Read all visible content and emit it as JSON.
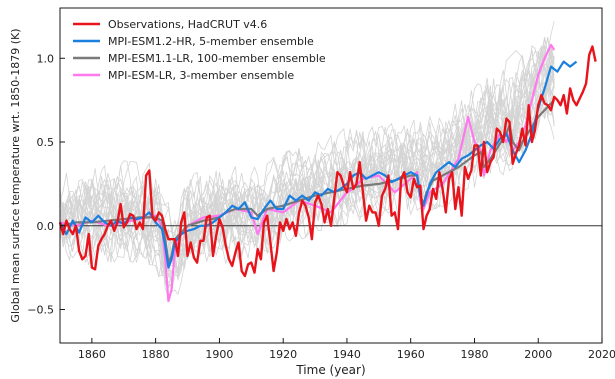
{
  "chart_data": {
    "type": "line",
    "xlabel": "Time (year)",
    "ylabel": "Global mean surface temperature wrt. 1850-1879 (K)",
    "xlim": [
      1850,
      2020
    ],
    "ylim": [
      -0.7,
      1.3
    ],
    "xticks": [
      1860,
      1880,
      1900,
      1920,
      1940,
      1960,
      1980,
      2000,
      2020
    ],
    "yticks": [
      -0.5,
      0.0,
      0.5,
      1.0
    ],
    "ytick_labels": [
      "−0.5",
      "0.0",
      "0.5",
      "1.0"
    ],
    "zero_line": true,
    "legend_position": "top-left",
    "background_ensemble": {
      "color": "#d4d4d4",
      "band_x": [
        1850,
        1860,
        1870,
        1880,
        1883,
        1885,
        1890,
        1900,
        1910,
        1920,
        1930,
        1940,
        1950,
        1960,
        1970,
        1980,
        1990,
        2000,
        2005
      ],
      "band_low": [
        -0.25,
        -0.25,
        -0.22,
        -0.25,
        -0.45,
        -0.5,
        -0.3,
        -0.25,
        -0.2,
        -0.15,
        -0.05,
        0.0,
        0.05,
        0.05,
        0.1,
        0.2,
        0.3,
        0.45,
        0.5
      ],
      "band_high": [
        0.35,
        0.35,
        0.4,
        0.38,
        0.2,
        0.1,
        0.3,
        0.4,
        0.35,
        0.45,
        0.5,
        0.6,
        0.6,
        0.65,
        0.7,
        0.85,
        1.0,
        1.2,
        1.25
      ]
    },
    "series": [
      {
        "name": "Observations, HadCRUT v4.6",
        "color": "#e8141b",
        "x": [
          1850,
          1851,
          1852,
          1853,
          1854,
          1855,
          1856,
          1857,
          1858,
          1859,
          1860,
          1861,
          1862,
          1863,
          1864,
          1865,
          1866,
          1867,
          1868,
          1869,
          1870,
          1871,
          1872,
          1873,
          1874,
          1875,
          1876,
          1877,
          1878,
          1879,
          1880,
          1881,
          1882,
          1883,
          1884,
          1885,
          1886,
          1887,
          1888,
          1889,
          1890,
          1891,
          1892,
          1893,
          1894,
          1895,
          1896,
          1897,
          1898,
          1899,
          1900,
          1901,
          1902,
          1903,
          1904,
          1905,
          1906,
          1907,
          1908,
          1909,
          1910,
          1911,
          1912,
          1913,
          1914,
          1915,
          1916,
          1917,
          1918,
          1919,
          1920,
          1921,
          1922,
          1923,
          1924,
          1925,
          1926,
          1927,
          1928,
          1929,
          1930,
          1931,
          1932,
          1933,
          1934,
          1935,
          1936,
          1937,
          1938,
          1939,
          1940,
          1941,
          1942,
          1943,
          1944,
          1945,
          1946,
          1947,
          1948,
          1949,
          1950,
          1951,
          1952,
          1953,
          1954,
          1955,
          1956,
          1957,
          1958,
          1959,
          1960,
          1961,
          1962,
          1963,
          1964,
          1965,
          1966,
          1967,
          1968,
          1969,
          1970,
          1971,
          1972,
          1973,
          1974,
          1975,
          1976,
          1977,
          1978,
          1979,
          1980,
          1981,
          1982,
          1983,
          1984,
          1985,
          1986,
          1987,
          1988,
          1989,
          1990,
          1991,
          1992,
          1993,
          1994,
          1995,
          1996,
          1997,
          1998,
          1999,
          2000,
          2001,
          2002,
          2003,
          2004,
          2005,
          2006,
          2007,
          2008,
          2009,
          2010,
          2011,
          2012,
          2013,
          2014,
          2015,
          2016,
          2017,
          2018
        ],
        "y": [
          0.02,
          -0.05,
          0.03,
          -0.02,
          -0.05,
          0.0,
          -0.15,
          -0.2,
          -0.18,
          -0.05,
          -0.25,
          -0.26,
          -0.12,
          -0.08,
          -0.05,
          0.0,
          0.03,
          -0.03,
          0.02,
          0.13,
          -0.01,
          0.02,
          0.07,
          0.06,
          -0.02,
          0.02,
          -0.02,
          0.3,
          0.33,
          0.05,
          0.03,
          0.08,
          0.06,
          -0.02,
          -0.08,
          -0.08,
          -0.08,
          -0.18,
          0.02,
          0.08,
          -0.18,
          -0.1,
          -0.19,
          -0.22,
          -0.09,
          -0.09,
          0.05,
          0.06,
          -0.18,
          -0.06,
          0.04,
          -0.01,
          -0.12,
          -0.2,
          -0.24,
          -0.16,
          -0.1,
          -0.27,
          -0.3,
          -0.23,
          -0.22,
          -0.28,
          -0.14,
          -0.2,
          0.02,
          0.06,
          -0.1,
          -0.27,
          -0.16,
          0.02,
          -0.03,
          0.04,
          -0.02,
          0.02,
          -0.06,
          0.08,
          0.15,
          0.12,
          0.05,
          -0.08,
          0.14,
          0.18,
          0.13,
          0.02,
          0.1,
          0.0,
          0.16,
          0.32,
          0.3,
          0.24,
          0.2,
          0.32,
          0.22,
          0.25,
          0.38,
          0.2,
          0.03,
          0.12,
          0.08,
          0.08,
          0.0,
          0.18,
          0.22,
          0.3,
          0.06,
          0.08,
          -0.02,
          0.28,
          0.32,
          0.2,
          0.17,
          0.28,
          0.23,
          0.24,
          -0.02,
          0.06,
          0.1,
          0.22,
          0.16,
          0.32,
          0.22,
          0.08,
          0.28,
          0.32,
          0.1,
          0.23,
          0.06,
          0.35,
          0.28,
          0.33,
          0.48,
          0.48,
          0.3,
          0.5,
          0.32,
          0.38,
          0.41,
          0.58,
          0.56,
          0.5,
          0.64,
          0.62,
          0.37,
          0.43,
          0.48,
          0.58,
          0.48,
          0.72,
          0.5,
          0.57,
          0.72,
          0.78,
          0.73,
          0.72,
          0.69,
          0.77,
          0.75,
          0.72,
          0.78,
          0.67,
          0.82,
          0.75,
          0.72,
          0.76,
          0.8,
          0.85,
          1.02,
          1.07,
          0.98
        ]
      },
      {
        "name": "MPI-ESM1.2-HR, 5-member ensemble",
        "color": "#1a7fde",
        "x": [
          1850,
          1852,
          1854,
          1856,
          1858,
          1860,
          1862,
          1864,
          1866,
          1868,
          1870,
          1872,
          1874,
          1876,
          1878,
          1880,
          1882,
          1883,
          1884,
          1885,
          1886,
          1888,
          1890,
          1892,
          1894,
          1896,
          1898,
          1900,
          1902,
          1904,
          1906,
          1908,
          1910,
          1912,
          1914,
          1916,
          1918,
          1920,
          1922,
          1924,
          1926,
          1928,
          1930,
          1932,
          1934,
          1936,
          1938,
          1940,
          1942,
          1944,
          1946,
          1948,
          1950,
          1952,
          1954,
          1956,
          1958,
          1960,
          1962,
          1963,
          1964,
          1966,
          1968,
          1970,
          1972,
          1974,
          1976,
          1978,
          1980,
          1982,
          1984,
          1986,
          1988,
          1990,
          1992,
          1994,
          1996,
          1998,
          2000,
          2002,
          2004,
          2006,
          2008,
          2010,
          2012
        ],
        "y": [
          0.02,
          -0.05,
          0.03,
          -0.04,
          0.05,
          0.02,
          0.06,
          0.02,
          0.0,
          0.03,
          0.01,
          0.05,
          0.04,
          0.05,
          0.08,
          0.02,
          -0.02,
          -0.12,
          -0.25,
          -0.2,
          -0.1,
          -0.05,
          -0.03,
          -0.02,
          0.0,
          0.0,
          0.02,
          0.05,
          0.08,
          0.12,
          0.1,
          0.14,
          0.05,
          0.04,
          0.1,
          0.15,
          0.1,
          0.1,
          0.18,
          0.15,
          0.18,
          0.15,
          0.2,
          0.18,
          0.22,
          0.2,
          0.22,
          0.25,
          0.3,
          0.32,
          0.28,
          0.3,
          0.32,
          0.3,
          0.26,
          0.28,
          0.3,
          0.32,
          0.3,
          0.18,
          0.12,
          0.25,
          0.32,
          0.35,
          0.38,
          0.35,
          0.4,
          0.42,
          0.45,
          0.48,
          0.5,
          0.46,
          0.52,
          0.55,
          0.45,
          0.38,
          0.45,
          0.55,
          0.7,
          0.82,
          0.95,
          0.92,
          0.98,
          0.95,
          0.98
        ]
      },
      {
        "name": "MPI-ESM1.1-LR, 100-member ensemble",
        "color": "#7a7a7a",
        "x": [
          1850,
          1855,
          1860,
          1865,
          1870,
          1875,
          1880,
          1882,
          1883,
          1884,
          1885,
          1886,
          1888,
          1890,
          1895,
          1900,
          1902,
          1905,
          1910,
          1912,
          1915,
          1920,
          1925,
          1930,
          1935,
          1940,
          1945,
          1950,
          1955,
          1960,
          1962,
          1963,
          1964,
          1965,
          1967,
          1970,
          1975,
          1980,
          1982,
          1983,
          1985,
          1990,
          1991,
          1992,
          1994,
          1995,
          2000,
          2005
        ],
        "y": [
          0.0,
          0.02,
          0.02,
          0.03,
          0.04,
          0.05,
          0.05,
          0.03,
          -0.08,
          -0.22,
          -0.18,
          -0.08,
          -0.04,
          0.0,
          0.03,
          0.05,
          0.08,
          0.1,
          0.1,
          0.06,
          0.1,
          0.12,
          0.15,
          0.18,
          0.2,
          0.22,
          0.24,
          0.25,
          0.27,
          0.3,
          0.3,
          0.18,
          0.13,
          0.2,
          0.27,
          0.3,
          0.35,
          0.42,
          0.44,
          0.35,
          0.4,
          0.55,
          0.6,
          0.5,
          0.45,
          0.5,
          0.65,
          0.75
        ]
      },
      {
        "name": "MPI-ESM-LR, 3-member ensemble",
        "color": "#ff78ee",
        "x": [
          1850,
          1855,
          1860,
          1865,
          1870,
          1875,
          1880,
          1882,
          1883,
          1884,
          1885,
          1886,
          1888,
          1890,
          1895,
          1900,
          1905,
          1910,
          1912,
          1915,
          1920,
          1925,
          1930,
          1935,
          1940,
          1942,
          1945,
          1950,
          1955,
          1960,
          1962,
          1963,
          1964,
          1966,
          1970,
          1975,
          1978,
          1980,
          1982,
          1983,
          1985,
          1988,
          1990,
          1991,
          1992,
          1994,
          1996,
          1998,
          2000,
          2002,
          2004,
          2005
        ],
        "y": [
          0.02,
          0.0,
          0.03,
          0.0,
          0.02,
          0.04,
          0.06,
          0.0,
          -0.2,
          -0.45,
          -0.38,
          -0.15,
          -0.05,
          0.0,
          0.05,
          0.06,
          0.1,
          0.08,
          -0.05,
          0.1,
          0.08,
          0.15,
          0.12,
          0.08,
          0.2,
          0.22,
          0.28,
          0.3,
          0.2,
          0.28,
          0.32,
          0.15,
          0.1,
          0.2,
          0.25,
          0.4,
          0.65,
          0.5,
          0.45,
          0.3,
          0.45,
          0.55,
          0.5,
          0.55,
          0.45,
          0.5,
          0.6,
          0.75,
          0.9,
          1.0,
          1.08,
          1.05
        ]
      }
    ]
  }
}
